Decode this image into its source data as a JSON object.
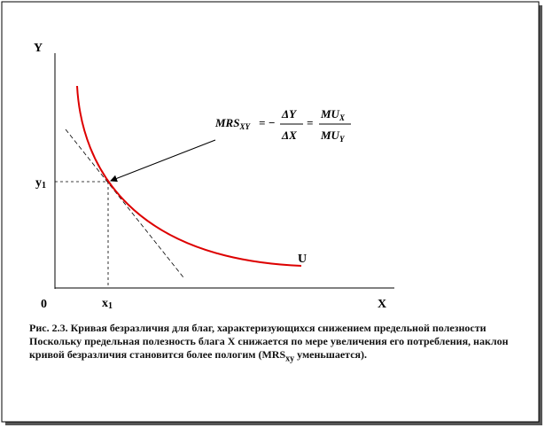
{
  "axes": {
    "y_label": "Y",
    "x_label": "X",
    "origin": "0",
    "y1": "y",
    "y1_sub": "1",
    "x1": "x",
    "x1_sub": "1",
    "curve_label": "U"
  },
  "formula": {
    "lhs": "MRS",
    "lhs_sub": "XY",
    "eq1": "= −",
    "num1": "ΔY",
    "den1": "ΔX",
    "eq2": "=",
    "num2": "MU",
    "num2_sub": "X",
    "den2": "MU",
    "den2_sub": "Y"
  },
  "caption": {
    "title": "Рис. 2.3. Кривая безразличия для благ, характеризующихся снижением предельной полезности",
    "body": "Поскольку предельная полезность блага X снижается по мере увеличения его потребления, наклон кривой безразличия становится более пологим (MRS",
    "body_sub": "xy",
    "body_end": " уменьшается)."
  }
}
